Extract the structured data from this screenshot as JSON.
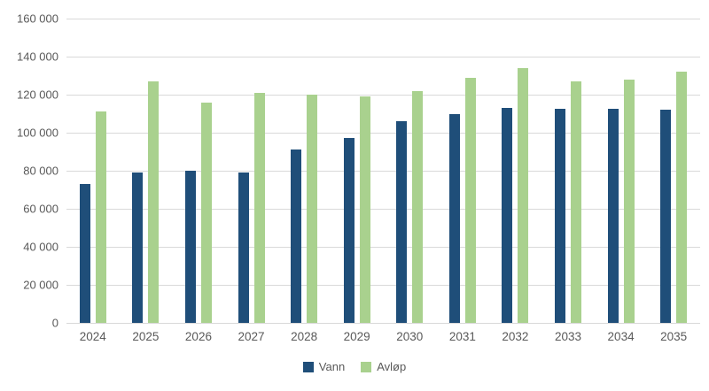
{
  "chart_data": {
    "type": "bar",
    "title": "",
    "xlabel": "",
    "ylabel": "",
    "categories": [
      "2024",
      "2025",
      "2026",
      "2027",
      "2028",
      "2029",
      "2030",
      "2031",
      "2032",
      "2033",
      "2034",
      "2035"
    ],
    "series": [
      {
        "name": "Vann",
        "color": "#1F4E79",
        "values": [
          73000,
          79000,
          80000,
          79000,
          91000,
          97000,
          106000,
          110000,
          113000,
          112500,
          112500,
          112000
        ]
      },
      {
        "name": "Avløp",
        "color": "#A9D18E",
        "values": [
          111000,
          127000,
          116000,
          121000,
          120000,
          119000,
          122000,
          129000,
          134000,
          127000,
          128000,
          132000
        ]
      }
    ],
    "ylim": [
      0,
      160000
    ],
    "yticks": [
      {
        "value": 0,
        "label": "0"
      },
      {
        "value": 20000,
        "label": "20 000"
      },
      {
        "value": 40000,
        "label": "40 000"
      },
      {
        "value": 60000,
        "label": "60 000"
      },
      {
        "value": 80000,
        "label": "80 000"
      },
      {
        "value": 100000,
        "label": "100 000"
      },
      {
        "value": 120000,
        "label": "120 000"
      },
      {
        "value": 140000,
        "label": "140 000"
      },
      {
        "value": 160000,
        "label": "160 000"
      }
    ],
    "grid": true,
    "legend_position": "bottom"
  },
  "colors": {
    "background": "#FFFFFF",
    "gridline": "#D9D9D9",
    "axis_text": "#595959"
  }
}
